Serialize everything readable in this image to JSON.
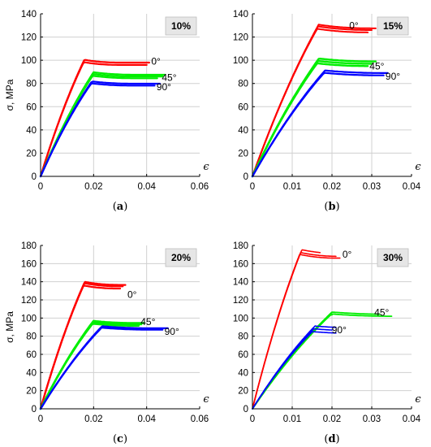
{
  "chart_data": [
    {
      "type": "line",
      "panel": "(a)",
      "subcaption": "a",
      "badge": "10%",
      "ylabel": "σ, MPa",
      "xlabel": "ϵ",
      "xlim": [
        0,
        0.06
      ],
      "ylim": [
        0,
        140
      ],
      "xticks": [
        "0",
        "0.02",
        "0.04",
        "0.06"
      ],
      "yticks": [
        "0",
        "20",
        "40",
        "60",
        "80",
        "100",
        "120",
        "140"
      ],
      "grid": true,
      "colors": {
        "0°": "#ff0000",
        "45°": "#00ee00",
        "90°": "#0000ff"
      },
      "series": [
        {
          "name": "0°",
          "peak": 98,
          "eu": 0.03,
          "end": 0.041,
          "ends": [
            0.041,
            0.04
          ],
          "spread": [
            0,
            -2
          ],
          "lw": 2.2
        },
        {
          "name": "45°",
          "peak": 86,
          "eu": 0.036,
          "end": 0.047,
          "ends": [
            0.047,
            0.046,
            0.044
          ],
          "spread": [
            1.5,
            0,
            -1.5
          ],
          "lw": 2.2
        },
        {
          "name": "90°",
          "peak": 79,
          "eu": 0.035,
          "end": 0.045,
          "ends": [
            0.045,
            0.043
          ],
          "spread": [
            0.8,
            -0.8
          ],
          "lw": 2.2
        }
      ],
      "labels": [
        {
          "text": "0°",
          "x": 0.0435,
          "y": 99
        },
        {
          "text": "45°",
          "x": 0.0485,
          "y": 85
        },
        {
          "text": "90°",
          "x": 0.0465,
          "y": 77
        }
      ]
    },
    {
      "type": "line",
      "panel": "(b)",
      "subcaption": "b",
      "badge": "15%",
      "ylabel": "",
      "xlabel": "ϵ",
      "xlim": [
        0,
        0.04
      ],
      "ylim": [
        0,
        140
      ],
      "xticks": [
        "0",
        "0.01",
        "0.02",
        "0.03",
        "0.04"
      ],
      "yticks": [
        "0",
        "20",
        "40",
        "60",
        "80",
        "100",
        "120",
        "140"
      ],
      "grid": true,
      "colors": {
        "0°": "#ff0000",
        "45°": "#00ee00",
        "90°": "#0000ff"
      },
      "series": [
        {
          "name": "0°",
          "peak": 126,
          "eu": 0.03,
          "end": 0.031,
          "ends": [
            0.031,
            0.03,
            0.029
          ],
          "spread": [
            1.5,
            0,
            -2
          ],
          "lw": 2.0
        },
        {
          "name": "45°",
          "peak": 97,
          "eu": 0.03,
          "end": 0.031,
          "ends": [
            0.031,
            0.03,
            0.029
          ],
          "spread": [
            2,
            0,
            -2
          ],
          "lw": 2.4
        },
        {
          "name": "90°",
          "peak": 88,
          "eu": 0.033,
          "end": 0.034,
          "ends": [
            0.034,
            0.033
          ],
          "spread": [
            1,
            -1
          ],
          "lw": 2.2
        }
      ],
      "labels": [
        {
          "text": "0°",
          "x": 0.0255,
          "y": 130
        },
        {
          "text": "45°",
          "x": 0.0313,
          "y": 95
        },
        {
          "text": "90°",
          "x": 0.0353,
          "y": 86
        }
      ]
    },
    {
      "type": "line",
      "panel": "(c)",
      "subcaption": "c",
      "badge": "20%",
      "ylabel": "σ, MPa",
      "xlabel": "ϵ",
      "xlim": [
        0,
        0.06
      ],
      "ylim": [
        0,
        180
      ],
      "xticks": [
        "0",
        "0.02",
        "0.04",
        "0.06"
      ],
      "yticks": [
        "0",
        "20",
        "40",
        "60",
        "80",
        "100",
        "120",
        "140",
        "160",
        "180"
      ],
      "grid": true,
      "colors": {
        "0°": "#ff0000",
        "45°": "#00ee00",
        "90°": "#0000ff"
      },
      "series": [
        {
          "name": "0°",
          "peak": 135,
          "eu": 0.03,
          "end": 0.032,
          "ends": [
            0.032,
            0.031,
            0.03
          ],
          "spread": [
            1.5,
            0,
            -2.5
          ],
          "lw": 2.2
        },
        {
          "name": "45°",
          "peak": 93,
          "eu": 0.036,
          "end": 0.039,
          "ends": [
            0.039,
            0.038,
            0.037
          ],
          "spread": [
            1.5,
            0,
            -1.5
          ],
          "lw": 2.4
        },
        {
          "name": "90°",
          "peak": 88,
          "eu": 0.042,
          "end": 0.048,
          "ends": [
            0.048,
            0.046
          ],
          "spread": [
            0.8,
            -0.8
          ],
          "lw": 2.2
        }
      ],
      "labels": [
        {
          "text": "0°",
          "x": 0.0345,
          "y": 126
        },
        {
          "text": "45°",
          "x": 0.0405,
          "y": 96
        },
        {
          "text": "90°",
          "x": 0.0495,
          "y": 85
        }
      ]
    },
    {
      "type": "line",
      "panel": "(d)",
      "subcaption": "d",
      "badge": "30%",
      "ylabel": "",
      "xlabel": "ϵ",
      "xlim": [
        0,
        0.04
      ],
      "ylim": [
        0,
        180
      ],
      "xticks": [
        "0",
        "0.01",
        "0.02",
        "0.03",
        "0.04"
      ],
      "yticks": [
        "0",
        "20",
        "40",
        "60",
        "80",
        "100",
        "120",
        "140",
        "160",
        "180"
      ],
      "grid": true,
      "colors": {
        "0°": "#ff0000",
        "45°": "#00ee00",
        "90°": "#0000ff"
      },
      "series": [
        {
          "name": "0°",
          "peak": 168,
          "eu": 0.022,
          "end": 0.022,
          "ends": [
            0.017,
            0.021,
            0.022
          ],
          "spread": [
            3,
            0,
            -2
          ],
          "lw": 1.6
        },
        {
          "name": "45°",
          "peak": 102,
          "eu": 0.036,
          "end": 0.035,
          "ends": [
            0.02,
            0.032,
            0.035
          ],
          "spread": [
            -1,
            2,
            0
          ],
          "lw": 1.8
        },
        {
          "name": "90°",
          "peak": 86,
          "eu": 0.028,
          "end": 0.021,
          "ends": [
            0.021,
            0.02,
            0.021
          ],
          "spread": [
            3,
            0,
            -3
          ],
          "lw": 1.6
        }
      ],
      "labels": [
        {
          "text": "0°",
          "x": 0.0238,
          "y": 170
        },
        {
          "text": "45°",
          "x": 0.0325,
          "y": 106
        },
        {
          "text": "90°",
          "x": 0.0218,
          "y": 87
        }
      ]
    }
  ]
}
